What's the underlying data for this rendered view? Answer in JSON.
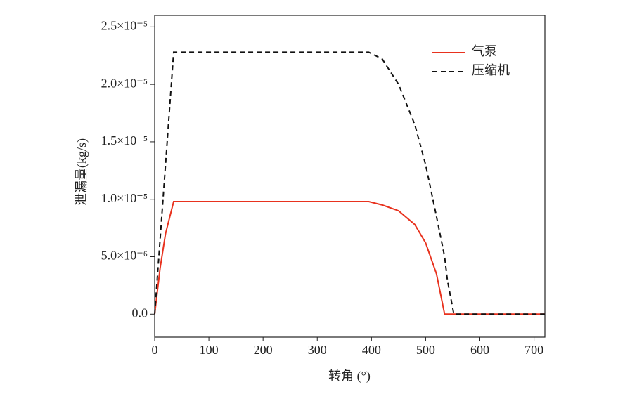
{
  "chart_data": {
    "type": "line",
    "x_label": "转角 (°)",
    "y_label": "泄漏量(kg/s)",
    "x": [
      0,
      10,
      20,
      35,
      395,
      420,
      450,
      480,
      500,
      520,
      535,
      540,
      552,
      600,
      720
    ],
    "series": [
      {
        "name": "气泵",
        "color": "#e8321e",
        "dash": "solid",
        "values": [
          0,
          4e-06,
          7e-06,
          9.8e-06,
          9.8e-06,
          9.5e-06,
          9e-06,
          7.8e-06,
          6.2e-06,
          3.5e-06,
          0,
          0,
          0,
          0,
          0
        ]
      },
      {
        "name": "压缩机",
        "color": "#111111",
        "dash": "dashed",
        "values": [
          0,
          6.5e-06,
          1.3e-05,
          2.28e-05,
          2.28e-05,
          2.22e-05,
          2e-05,
          1.65e-05,
          1.3e-05,
          8.5e-06,
          5e-06,
          3e-06,
          0,
          0,
          0
        ]
      }
    ],
    "xlim": [
      0,
      720
    ],
    "xticks": [
      0,
      100,
      200,
      300,
      400,
      500,
      600,
      700
    ],
    "ylim": [
      -2e-06,
      2.6e-05
    ],
    "yticks": [
      {
        "value": 0,
        "label": "0.0"
      },
      {
        "value": 5e-06,
        "label": "5.0×10⁻⁶"
      },
      {
        "value": 1e-05,
        "label": "1.0×10⁻⁵"
      },
      {
        "value": 1.5e-05,
        "label": "1.5×10⁻⁵"
      },
      {
        "value": 2e-05,
        "label": "2.0×10⁻⁵"
      },
      {
        "value": 2.5e-05,
        "label": "2.5×10⁻⁵"
      }
    ],
    "legend": "top-right"
  }
}
